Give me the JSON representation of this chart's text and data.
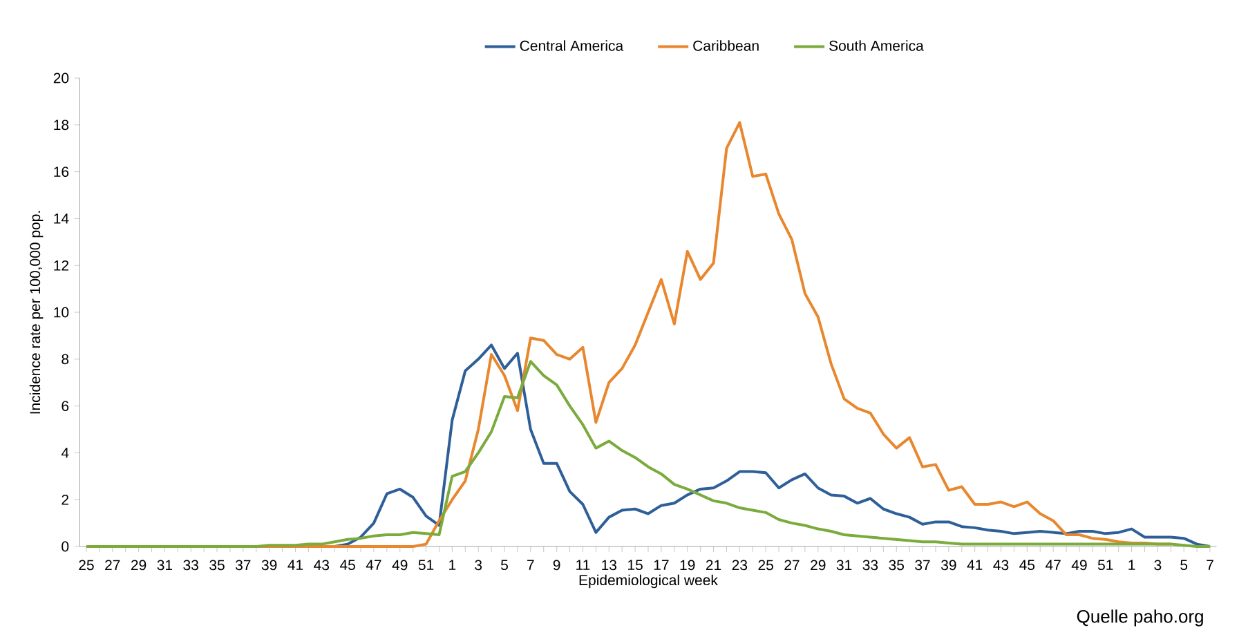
{
  "chart_data": {
    "type": "line",
    "xlabel": "Epidemiological week",
    "ylabel": "Incidence rate per 100,000 pop.",
    "categories": [
      "25",
      null,
      "27",
      null,
      "29",
      null,
      "31",
      null,
      "33",
      null,
      "35",
      null,
      "37",
      null,
      "39",
      null,
      "41",
      null,
      "43",
      null,
      "45",
      null,
      "47",
      null,
      "49",
      null,
      "51",
      null,
      "1",
      null,
      "3",
      null,
      "5",
      null,
      "7",
      null,
      "9",
      null,
      "11",
      null,
      "13",
      null,
      "15",
      null,
      "17",
      null,
      "19",
      null,
      "21",
      null,
      "23",
      null,
      "25",
      null,
      "27",
      null,
      "29",
      null,
      "31",
      null,
      "33",
      null,
      "35",
      null,
      "37",
      null,
      "39",
      null,
      "41",
      null,
      "43",
      null,
      "45",
      null,
      "47",
      null,
      "49",
      null,
      "51",
      null,
      "1",
      null,
      "3",
      null,
      "5",
      null,
      "7"
    ],
    "series": [
      {
        "name": "Central America",
        "color": "#2e5f99",
        "values": [
          null,
          null,
          null,
          null,
          null,
          null,
          null,
          null,
          null,
          null,
          null,
          null,
          null,
          null,
          null,
          null,
          null,
          null,
          0,
          0,
          0.1,
          0.4,
          1.0,
          2.25,
          2.45,
          2.1,
          1.3,
          0.9,
          5.4,
          7.5,
          8.0,
          8.6,
          7.6,
          8.25,
          5.0,
          3.55,
          3.55,
          2.35,
          1.8,
          0.6,
          1.25,
          1.55,
          1.6,
          1.4,
          1.75,
          1.85,
          2.2,
          2.45,
          2.5,
          2.8,
          3.2,
          3.2,
          3.15,
          2.5,
          2.85,
          3.1,
          2.5,
          2.2,
          2.15,
          1.85,
          2.05,
          1.6,
          1.4,
          1.25,
          0.95,
          1.05,
          1.05,
          0.85,
          0.8,
          0.7,
          0.65,
          0.55,
          0.6,
          0.65,
          0.6,
          0.55,
          0.65,
          0.65,
          0.55,
          0.6,
          0.75,
          0.4,
          0.4,
          0.4,
          0.35,
          0.1,
          0
        ]
      },
      {
        "name": "Caribbean",
        "color": "#e8872e",
        "values": [
          null,
          null,
          null,
          null,
          null,
          null,
          null,
          null,
          null,
          null,
          null,
          null,
          0,
          0,
          0,
          0,
          0,
          0,
          0,
          0,
          0,
          0,
          0,
          0,
          0,
          0,
          0.1,
          1.1,
          2.0,
          2.8,
          5.0,
          8.2,
          7.3,
          5.8,
          8.9,
          8.8,
          8.2,
          8.0,
          8.5,
          5.3,
          7.0,
          7.6,
          8.6,
          10.0,
          11.4,
          9.5,
          12.6,
          11.4,
          12.1,
          17.0,
          18.1,
          15.8,
          15.9,
          14.2,
          13.1,
          10.8,
          9.8,
          7.8,
          6.3,
          5.9,
          5.7,
          4.8,
          4.2,
          4.65,
          3.4,
          3.5,
          2.4,
          2.55,
          1.8,
          1.8,
          1.9,
          1.7,
          1.9,
          1.4,
          1.1,
          0.5,
          0.5,
          0.35,
          0.3,
          0.2,
          0.15,
          0.15,
          0.1,
          0.1,
          null,
          null,
          null
        ]
      },
      {
        "name": "South America",
        "color": "#7aab3c",
        "values": [
          0,
          0,
          0,
          0,
          0,
          0,
          0,
          0,
          0,
          0,
          0,
          0,
          0,
          0,
          0.05,
          0.05,
          0.05,
          0.1,
          0.1,
          0.2,
          0.3,
          0.35,
          0.45,
          0.5,
          0.5,
          0.6,
          0.55,
          0.5,
          3.0,
          3.2,
          4.0,
          4.9,
          6.4,
          6.35,
          7.9,
          7.3,
          6.9,
          6.0,
          5.2,
          4.2,
          4.5,
          4.1,
          3.8,
          3.4,
          3.1,
          2.65,
          2.45,
          2.2,
          1.95,
          1.85,
          1.65,
          1.55,
          1.45,
          1.15,
          1.0,
          0.9,
          0.75,
          0.65,
          0.5,
          0.45,
          0.4,
          0.35,
          0.3,
          0.25,
          0.2,
          0.2,
          0.15,
          0.1,
          0.1,
          0.1,
          0.1,
          0.1,
          0.1,
          0.1,
          0.1,
          0.1,
          0.1,
          0.1,
          0.1,
          0.1,
          0.1,
          0.1,
          0.1,
          0.1,
          0.05,
          0,
          0
        ]
      }
    ],
    "ylim": [
      0,
      20
    ],
    "yticks": [
      0,
      2,
      4,
      6,
      8,
      10,
      12,
      14,
      16,
      18,
      20
    ],
    "grid": false,
    "legend": "top",
    "annotations": [
      "Quelle paho.org"
    ]
  }
}
